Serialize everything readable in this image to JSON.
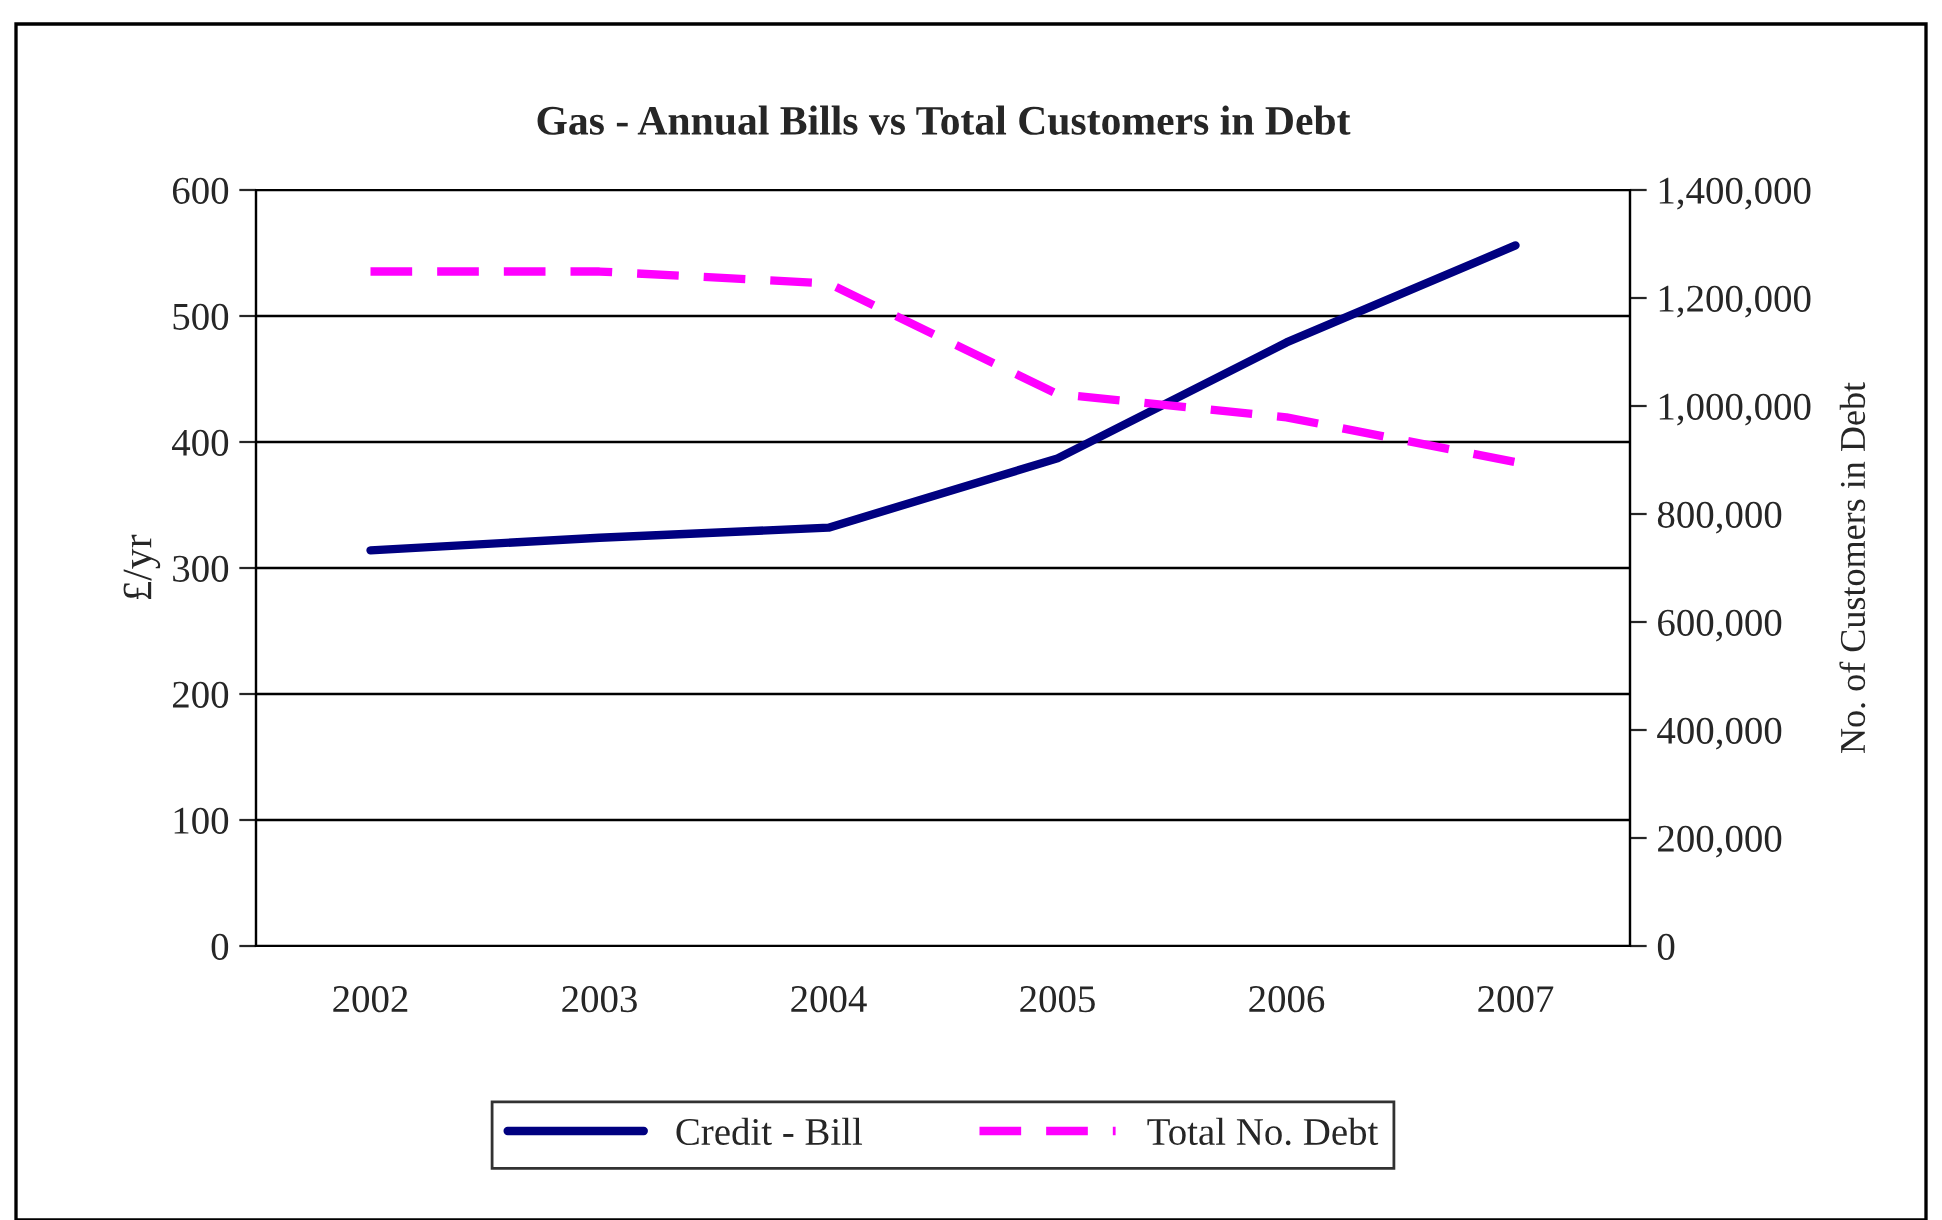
{
  "chart_data": {
    "type": "line",
    "title": "Gas - Annual Bills vs Total Customers in Debt",
    "categories": [
      "2002",
      "2003",
      "2004",
      "2005",
      "2006",
      "2007"
    ],
    "series": [
      {
        "name": "Credit - Bill",
        "color": "#000080",
        "values": [
          314,
          324,
          332,
          387,
          479,
          556
        ],
        "line_style": "solid"
      },
      {
        "name": "Total No. Debt",
        "color": "#ff00ff",
        "values": [
          1249000,
          1249000,
          1227000,
          1022000,
          979000,
          896000
        ],
        "axis": "y2",
        "line_style": "dashed"
      }
    ],
    "ylabel": "£/yr",
    "y2label": "No. of Customers in Debt",
    "ylim": [
      0,
      600
    ],
    "yticks": [
      0,
      100,
      200,
      300,
      400,
      500,
      600
    ],
    "y2lim": [
      0,
      1400000
    ],
    "y2ticks": [
      0,
      {
        "value": 200000,
        "label": "200,000"
      },
      {
        "value": 400000,
        "label": "400,000"
      },
      {
        "value": 600000,
        "label": "600,000"
      },
      {
        "value": 800000,
        "label": "800,000"
      },
      {
        "value": 1000000,
        "label": "1,000,000"
      },
      {
        "value": 1200000,
        "label": "1,200,000"
      },
      {
        "value": 1400000,
        "label": "1,400,000"
      }
    ],
    "grid": "y",
    "legend": "bottom",
    "marker": "none"
  }
}
